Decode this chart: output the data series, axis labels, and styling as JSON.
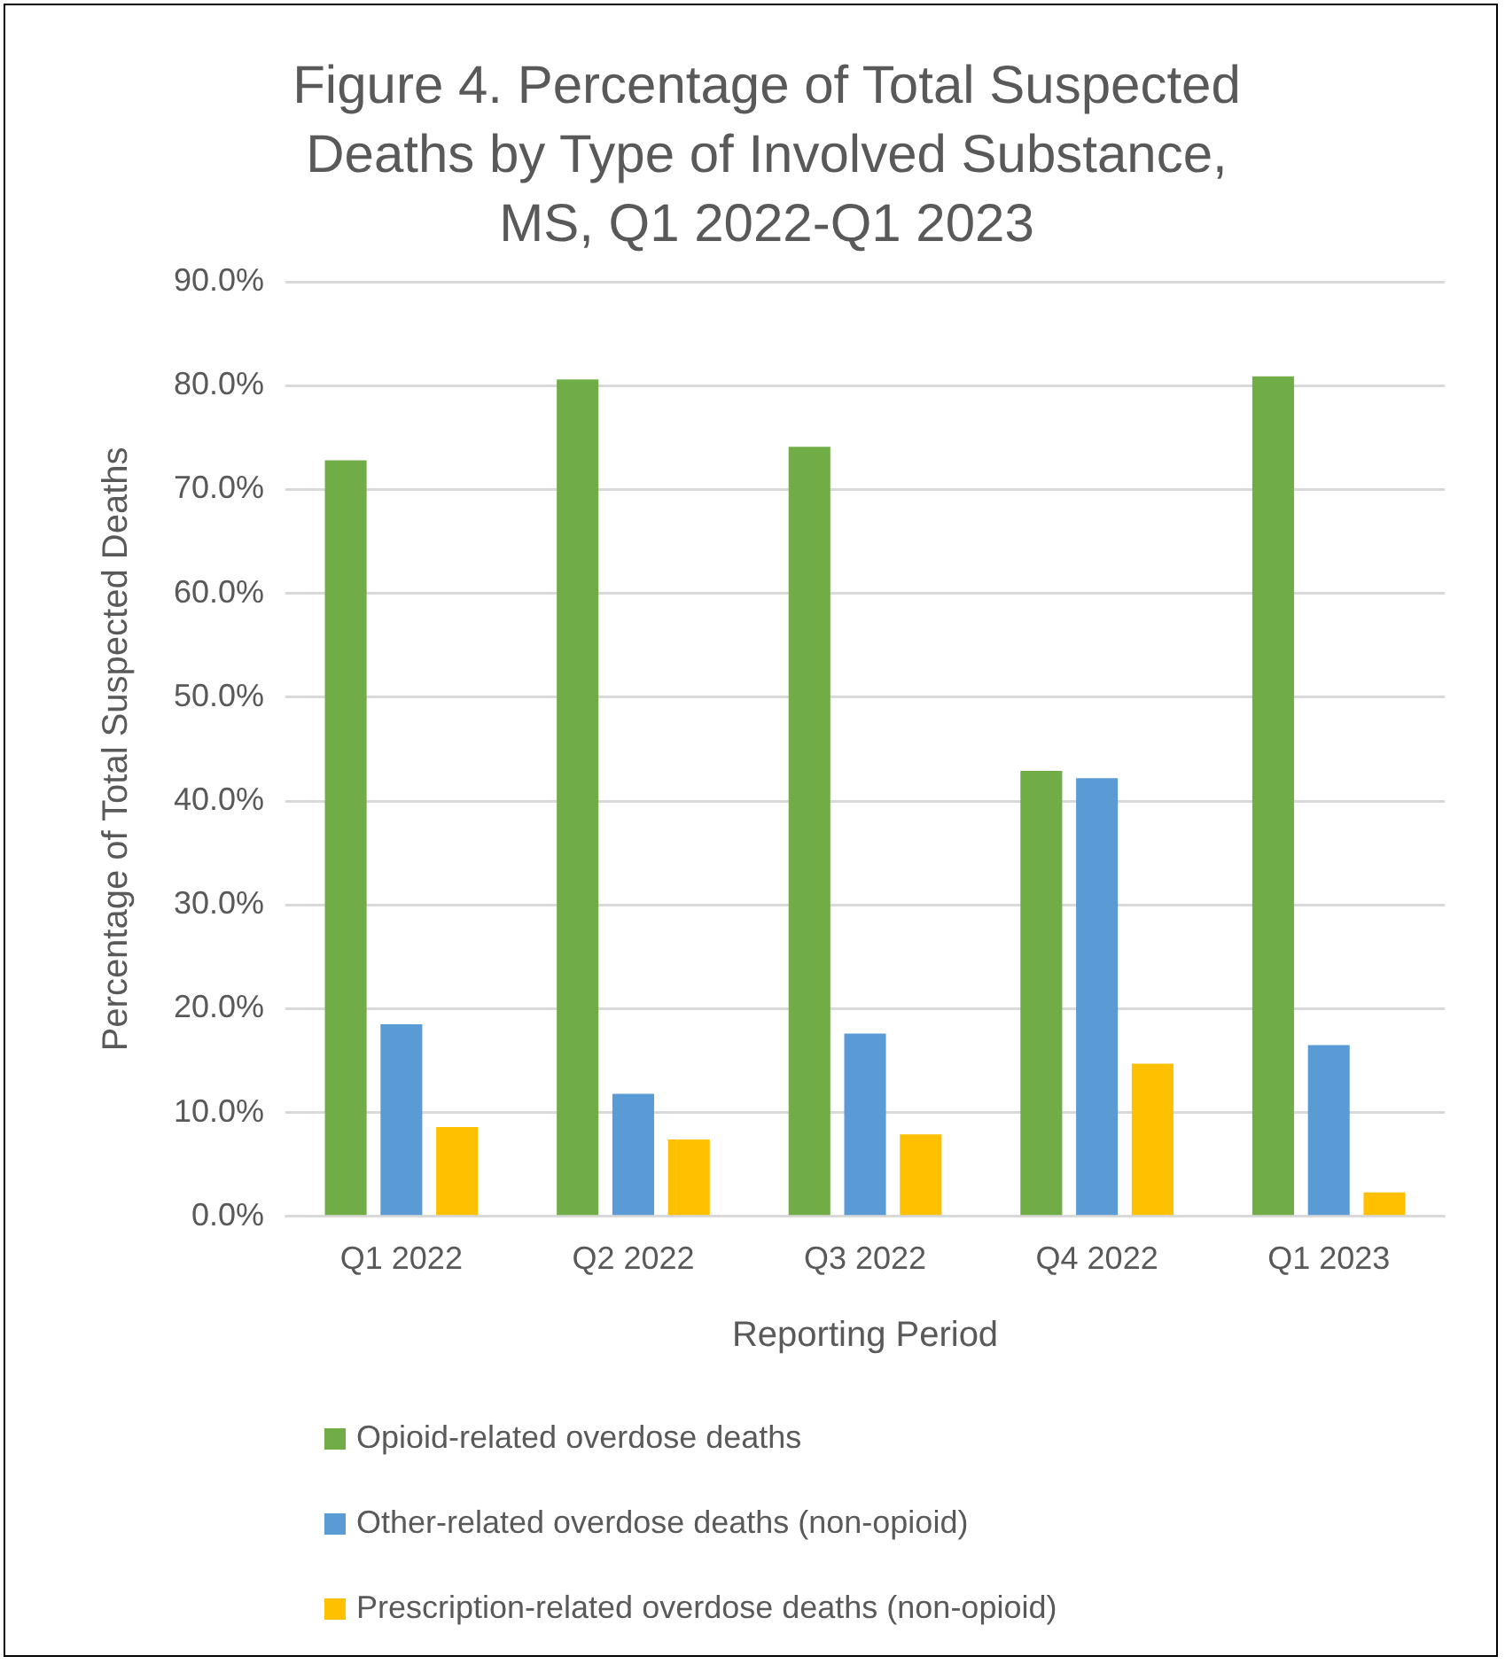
{
  "chart_data": {
    "type": "bar",
    "title": "Figure 4. Percentage of Total Suspected Deaths by Type of Involved Substance, MS, Q1 2022-Q1 2023",
    "xlabel": "Reporting Period",
    "ylabel": "Percentage of Total Suspected Deaths",
    "categories": [
      "Q1 2022",
      "Q2 2022",
      "Q3 2022",
      "Q4 2022",
      "Q1 2023"
    ],
    "series": [
      {
        "name": "Opioid-related overdose deaths",
        "color": "#70ad47",
        "values": [
          72.8,
          80.6,
          74.1,
          42.9,
          80.9
        ]
      },
      {
        "name": "Other-related overdose deaths (non-opioid)",
        "color": "#5b9bd5",
        "values": [
          18.5,
          11.8,
          17.6,
          42.2,
          16.5
        ]
      },
      {
        "name": "Prescription-related overdose deaths (non-opioid)",
        "color": "#ffc000",
        "values": [
          8.6,
          7.4,
          7.9,
          14.7,
          2.3
        ]
      }
    ],
    "ylim": [
      0,
      90
    ],
    "yticks": [
      {
        "value": 0,
        "label": "0.0%"
      },
      {
        "value": 10,
        "label": "10.0%"
      },
      {
        "value": 20,
        "label": "20.0%"
      },
      {
        "value": 30,
        "label": "30.0%"
      },
      {
        "value": 40,
        "label": "40.0%"
      },
      {
        "value": 50,
        "label": "50.0%"
      },
      {
        "value": 60,
        "label": "60.0%"
      },
      {
        "value": 70,
        "label": "70.0%"
      },
      {
        "value": 80,
        "label": "80.0%"
      },
      {
        "value": 90,
        "label": "90.0%"
      }
    ],
    "grid": "y",
    "legend": "bottom"
  }
}
